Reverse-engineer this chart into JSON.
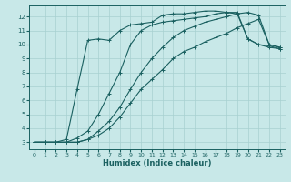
{
  "xlabel": "Humidex (Indice chaleur)",
  "ylabel": "",
  "bg_color": "#c8e8e8",
  "grid_color": "#a8d0d0",
  "line_color": "#1a6060",
  "xlim": [
    -0.5,
    23.5
  ],
  "ylim": [
    2.5,
    12.8
  ],
  "yticks": [
    3,
    4,
    5,
    6,
    7,
    8,
    9,
    10,
    11,
    12
  ],
  "xticks": [
    0,
    1,
    2,
    3,
    4,
    5,
    6,
    7,
    8,
    9,
    10,
    11,
    12,
    13,
    14,
    15,
    16,
    17,
    18,
    19,
    20,
    21,
    22,
    23
  ],
  "curves": [
    {
      "x": [
        0,
        1,
        2,
        3,
        4,
        5,
        6,
        7,
        8,
        9,
        10,
        11,
        12,
        13,
        14,
        15,
        16,
        17,
        18,
        19,
        20,
        21,
        22,
        23
      ],
      "y": [
        3,
        3,
        3,
        3,
        3,
        3.2,
        3.5,
        4.0,
        4.8,
        5.8,
        6.8,
        7.5,
        8.2,
        9.0,
        9.5,
        9.8,
        10.2,
        10.5,
        10.8,
        11.2,
        11.5,
        11.8,
        10.0,
        9.8
      ]
    },
    {
      "x": [
        0,
        1,
        2,
        3,
        4,
        5,
        6,
        7,
        8,
        9,
        10,
        11,
        12,
        13,
        14,
        15,
        16,
        17,
        18,
        19,
        20,
        21,
        22,
        23
      ],
      "y": [
        3,
        3,
        3,
        3,
        3,
        3.2,
        3.8,
        4.5,
        5.5,
        6.8,
        8.0,
        9.0,
        9.8,
        10.5,
        11.0,
        11.3,
        11.6,
        11.8,
        12.0,
        12.2,
        12.3,
        12.1,
        10.0,
        9.8
      ]
    },
    {
      "x": [
        0,
        1,
        2,
        3,
        4,
        5,
        6,
        7,
        8,
        9,
        10,
        11,
        12,
        13,
        14,
        15,
        16,
        17,
        18,
        19,
        20,
        21,
        22,
        23
      ],
      "y": [
        3,
        3,
        3,
        3,
        3.3,
        3.8,
        5.0,
        6.5,
        8.0,
        10.0,
        11.0,
        11.4,
        11.6,
        11.7,
        11.8,
        11.9,
        12.0,
        12.2,
        12.3,
        12.3,
        10.4,
        10.0,
        9.8,
        9.7
      ]
    },
    {
      "x": [
        0,
        1,
        2,
        3,
        4,
        5,
        6,
        7,
        8,
        9,
        10,
        11,
        12,
        13,
        14,
        15,
        16,
        17,
        18,
        19,
        20,
        21,
        22,
        23
      ],
      "y": [
        3,
        3,
        3,
        3.2,
        6.8,
        10.3,
        10.4,
        10.3,
        11.0,
        11.4,
        11.5,
        11.6,
        12.1,
        12.2,
        12.2,
        12.3,
        12.4,
        12.4,
        12.3,
        12.2,
        10.4,
        10.0,
        9.9,
        9.7
      ]
    }
  ]
}
